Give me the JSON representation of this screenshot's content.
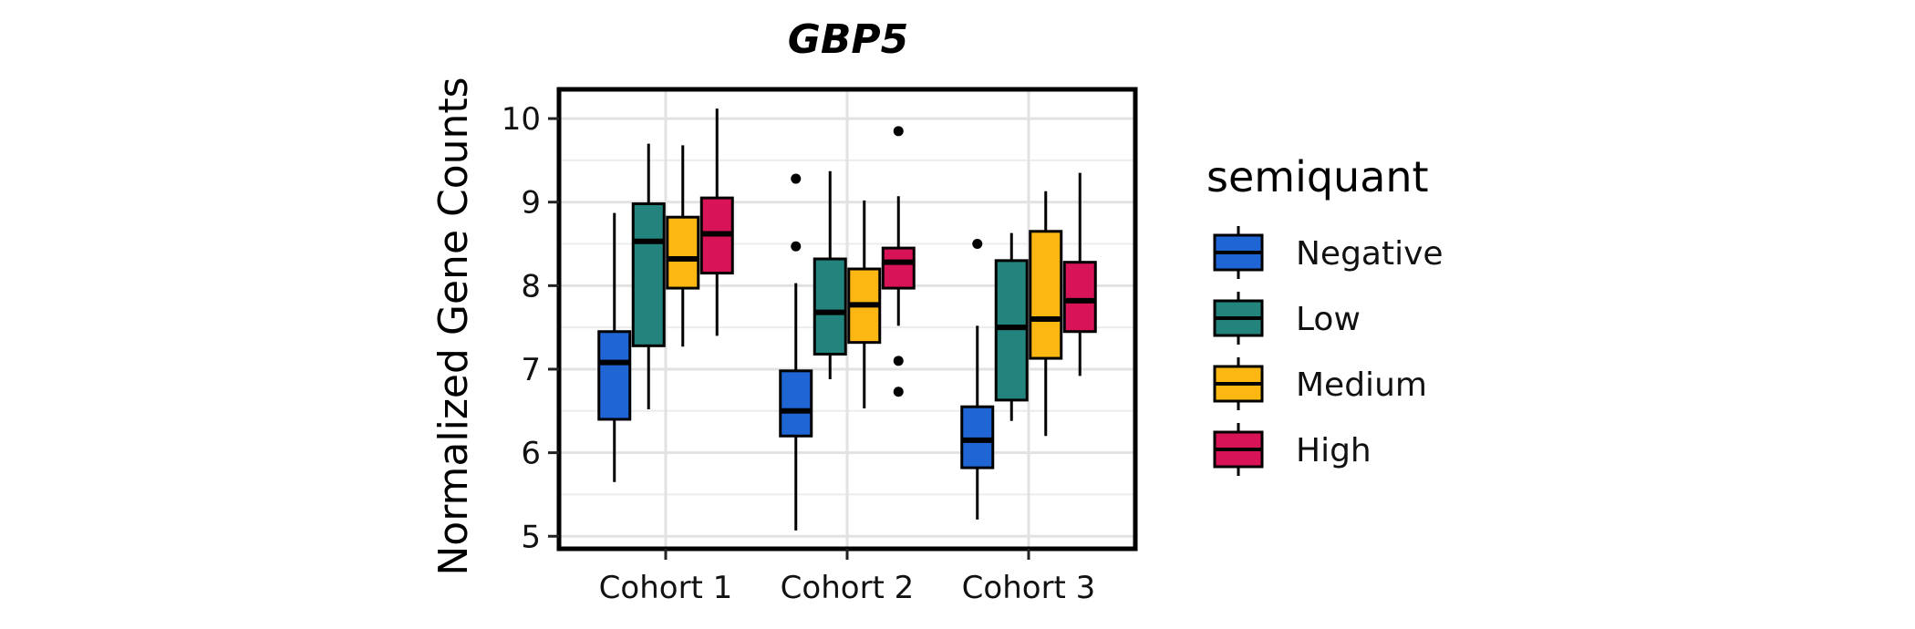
{
  "chart_data": {
    "type": "boxplot",
    "title": "GBP5",
    "xlabel": "",
    "ylabel": "Normalized Gene Counts",
    "ylim": [
      4.85,
      10.35
    ],
    "yticks": [
      5,
      6,
      7,
      8,
      9,
      10
    ],
    "grid": true,
    "legend_position": "right",
    "categories": [
      "Cohort 1",
      "Cohort 2",
      "Cohort 3"
    ],
    "legend": {
      "title": "semiquant",
      "entries": [
        "Negative",
        "Low",
        "Medium",
        "High"
      ]
    },
    "series": [
      {
        "name": "Negative",
        "color": "#1f66d4",
        "boxes": [
          {
            "whisker_low": 5.65,
            "q1": 6.4,
            "median": 7.08,
            "q3": 7.45,
            "whisker_high": 8.87,
            "outliers": []
          },
          {
            "whisker_low": 5.07,
            "q1": 6.2,
            "median": 6.5,
            "q3": 6.98,
            "whisker_high": 8.03,
            "outliers": [
              8.47,
              9.28
            ]
          },
          {
            "whisker_low": 5.2,
            "q1": 5.82,
            "median": 6.15,
            "q3": 6.55,
            "whisker_high": 7.52,
            "outliers": [
              8.5
            ]
          }
        ]
      },
      {
        "name": "Low",
        "color": "#23837d",
        "boxes": [
          {
            "whisker_low": 6.52,
            "q1": 7.28,
            "median": 8.53,
            "q3": 8.98,
            "whisker_high": 9.7,
            "outliers": []
          },
          {
            "whisker_low": 6.88,
            "q1": 7.18,
            "median": 7.68,
            "q3": 8.32,
            "whisker_high": 9.37,
            "outliers": []
          },
          {
            "whisker_low": 6.38,
            "q1": 6.63,
            "median": 7.5,
            "q3": 8.3,
            "whisker_high": 8.63,
            "outliers": []
          }
        ]
      },
      {
        "name": "Medium",
        "color": "#fdb713",
        "boxes": [
          {
            "whisker_low": 7.27,
            "q1": 7.97,
            "median": 8.32,
            "q3": 8.82,
            "whisker_high": 9.68,
            "outliers": []
          },
          {
            "whisker_low": 6.53,
            "q1": 7.32,
            "median": 7.77,
            "q3": 8.2,
            "whisker_high": 9.02,
            "outliers": []
          },
          {
            "whisker_low": 6.2,
            "q1": 7.13,
            "median": 7.6,
            "q3": 8.65,
            "whisker_high": 9.13,
            "outliers": []
          }
        ]
      },
      {
        "name": "High",
        "color": "#d81357",
        "boxes": [
          {
            "whisker_low": 7.4,
            "q1": 8.15,
            "median": 8.62,
            "q3": 9.05,
            "whisker_high": 10.12,
            "outliers": []
          },
          {
            "whisker_low": 7.52,
            "q1": 7.97,
            "median": 8.28,
            "q3": 8.45,
            "whisker_high": 9.07,
            "outliers": [
              6.73,
              7.1,
              9.85
            ]
          },
          {
            "whisker_low": 6.92,
            "q1": 7.45,
            "median": 7.82,
            "q3": 8.28,
            "whisker_high": 9.35,
            "outliers": []
          }
        ]
      }
    ]
  }
}
